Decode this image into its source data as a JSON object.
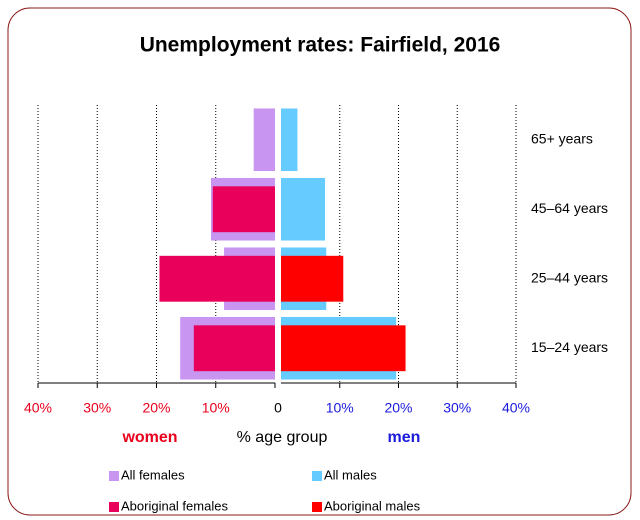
{
  "chart_data": {
    "type": "butterfly-bar",
    "title": "Unemployment rates: Fairfield, 2016",
    "categories": [
      "65+ years",
      "45–64 years",
      "25–44 years",
      "15–24 years"
    ],
    "left_label": "women",
    "center_label": "% age group",
    "right_label": "men",
    "left_label_color": "#e8001c",
    "right_label_color": "#1a1adc",
    "left_xlim": [
      0,
      40
    ],
    "right_xlim": [
      0,
      40
    ],
    "left_xticks": [
      {
        "value": 40,
        "label": "40%"
      },
      {
        "value": 30,
        "label": "30%"
      },
      {
        "value": 20,
        "label": "20%"
      },
      {
        "value": 10,
        "label": "10%"
      },
      0
    ],
    "right_xticks": [
      {
        "value": 10,
        "label": "10%"
      },
      {
        "value": 20,
        "label": "20%"
      },
      {
        "value": 30,
        "label": "30%"
      },
      {
        "value": 40,
        "label": "40%"
      }
    ],
    "left_tick_color": "#e8001c",
    "right_tick_color": "#1a1adc",
    "grid": true,
    "series": [
      {
        "name": "All females",
        "color": "#c895f0",
        "side": "left",
        "values": [
          3.6,
          10.8,
          8.6,
          16
        ]
      },
      {
        "name": "All males",
        "color": "#66ccff",
        "side": "right",
        "values": [
          2.8,
          7.5,
          7.7,
          19.6
        ]
      },
      {
        "name": "Aboriginal females",
        "color": "#e8005a",
        "side": "left",
        "values": [
          null,
          10.5,
          19.5,
          13.7
        ]
      },
      {
        "name": "Aboriginal males",
        "color": "#ff0000",
        "side": "right",
        "values": [
          null,
          null,
          10.6,
          21.2
        ]
      }
    ]
  }
}
